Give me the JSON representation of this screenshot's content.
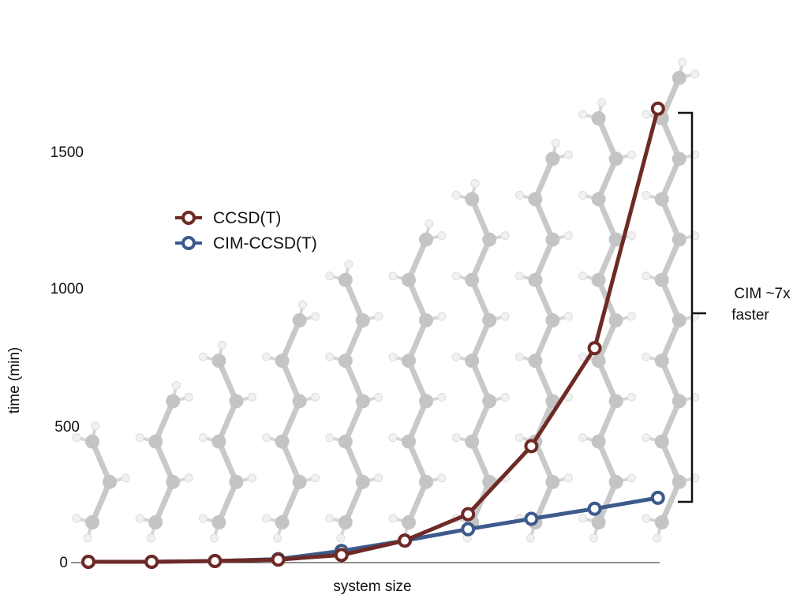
{
  "chart_data": {
    "type": "line",
    "title": "",
    "xlabel": "system size",
    "ylabel": "time (min)",
    "x": [
      1,
      2,
      3,
      4,
      5,
      6,
      7,
      8,
      9,
      10
    ],
    "yticks": [
      0,
      500,
      1000,
      1500
    ],
    "ylim": [
      0,
      1650
    ],
    "grid": false,
    "legend_position": "upper-left",
    "series": [
      {
        "name": "CCSD(T)",
        "color": "#6e2a26",
        "values": [
          0,
          0,
          3,
          8,
          25,
          78,
          175,
          425,
          785,
          1665
        ]
      },
      {
        "name": "CIM-CCSD(T)",
        "color": "#3d5a8c",
        "values": [
          0,
          0,
          3,
          10,
          40,
          78,
          120,
          158,
          195,
          235
        ]
      }
    ],
    "annotation": {
      "line1": "CIM ~7x",
      "line2": "faster"
    },
    "background_image": "propane-to-undecane-alkane-chain-molecules"
  }
}
